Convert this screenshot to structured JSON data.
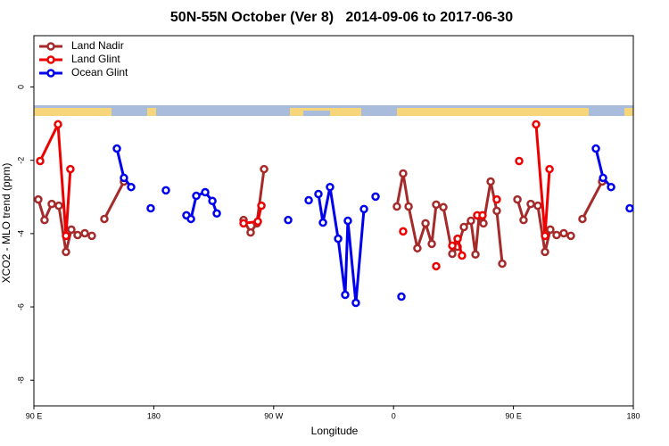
{
  "chart_data": {
    "type": "line",
    "title": "50N-55N October (Ver 8)   2014-09-06 to 2017-06-30",
    "x_label": "Longitude",
    "y_label": "XCO2 - MLO trend (ppm)",
    "xlim": [
      90,
      540
    ],
    "ylim": [
      -8.7,
      1.4
    ],
    "xticks": [
      {
        "value": 90,
        "label": "90 E"
      },
      {
        "value": 180,
        "label": "180"
      },
      {
        "value": 270,
        "label": "90 W"
      },
      {
        "value": 360,
        "label": "0"
      },
      {
        "value": 450,
        "label": "90 E"
      },
      {
        "value": 540,
        "label": "180"
      }
    ],
    "yticks": [
      0,
      -2,
      -4,
      -6,
      -8
    ],
    "legend": "top-left",
    "series": [
      {
        "name": "Land Nadir",
        "color": "#a52a2a",
        "x": [
          93.3,
          98.0,
          103.4,
          108.7,
          114.1,
          118.1,
          122.8,
          128.2,
          133.5,
          null,
          142.9,
          157.6,
          null,
          247.4,
          252.7,
          257.4,
          262.8,
          null,
          362.5,
          367.2,
          371.3,
          377.9,
          384.0,
          388.7,
          392.0,
          397.4,
          404.1,
          408.1,
          412.8,
          418.1,
          421.5,
          424.2,
          427.5,
          432.9,
          437.5,
          441.6,
          null,
          453.0,
          457.6,
          463.0,
          468.3,
          473.7,
          477.7,
          482.4,
          487.8,
          493.1,
          null,
          501.8,
          516.6
        ],
        "values": [
          -3.07,
          -3.63,
          -3.19,
          -3.24,
          -4.5,
          -3.89,
          -4.04,
          -3.99,
          -4.06,
          null,
          -3.6,
          -2.58,
          null,
          -3.63,
          -3.97,
          -3.72,
          -2.24,
          null,
          -3.26,
          -2.36,
          -3.26,
          -4.4,
          -3.72,
          -4.28,
          -3.21,
          -3.28,
          -4.55,
          -4.36,
          -3.82,
          -3.65,
          -4.57,
          -3.53,
          -3.72,
          -2.58,
          -3.38,
          -4.82,
          null,
          -3.07,
          -3.63,
          -3.19,
          -3.24,
          -4.5,
          -3.89,
          -4.04,
          -3.99,
          -4.06,
          null,
          -3.6,
          -2.58
        ]
      },
      {
        "name": "Land Glint",
        "color": "#ee0000",
        "x": [
          94.7,
          108.1,
          114.1,
          117.4,
          null,
          247.4,
          258.1,
          260.8,
          null,
          367.2,
          null,
          392.0,
          null,
          404.1,
          408.1,
          411.4,
          null,
          422.8,
          426.8,
          null,
          437.5,
          null,
          454.3,
          null,
          467.0,
          473.7,
          477.1
        ],
        "values": [
          -2.02,
          -1.02,
          -4.06,
          -2.24,
          null,
          -3.72,
          -3.67,
          -3.24,
          null,
          -3.94,
          null,
          -4.89,
          null,
          -4.33,
          -4.14,
          -4.6,
          null,
          -3.5,
          -3.5,
          null,
          -3.07,
          null,
          -2.02,
          null,
          -1.02,
          -4.06,
          -2.24
        ]
      },
      {
        "name": "Ocean Glint",
        "color": "#0000ee",
        "x": [
          152.3,
          157.6,
          163.0,
          null,
          177.7,
          null,
          189.1,
          null,
          204.5,
          207.9,
          211.9,
          218.6,
          224.0,
          227.3,
          null,
          280.9,
          null,
          296.3,
          null,
          303.6,
          307.0,
          312.3,
          318.4,
          323.7,
          325.7,
          331.7,
          337.8,
          null,
          346.5,
          null,
          365.9,
          null,
          511.9,
          517.3,
          523.3,
          null,
          537.3
        ],
        "values": [
          -1.68,
          -2.48,
          -2.73,
          null,
          -3.31,
          null,
          -2.82,
          null,
          -3.5,
          -3.6,
          -2.97,
          -2.87,
          -3.11,
          -3.45,
          null,
          -3.63,
          null,
          -3.09,
          null,
          -2.92,
          -3.7,
          -2.73,
          -4.14,
          -5.67,
          -3.65,
          -5.89,
          -3.33,
          null,
          -2.99,
          null,
          -5.72,
          null,
          -1.68,
          -2.48,
          -2.73,
          null,
          -3.31
        ]
      }
    ]
  }
}
